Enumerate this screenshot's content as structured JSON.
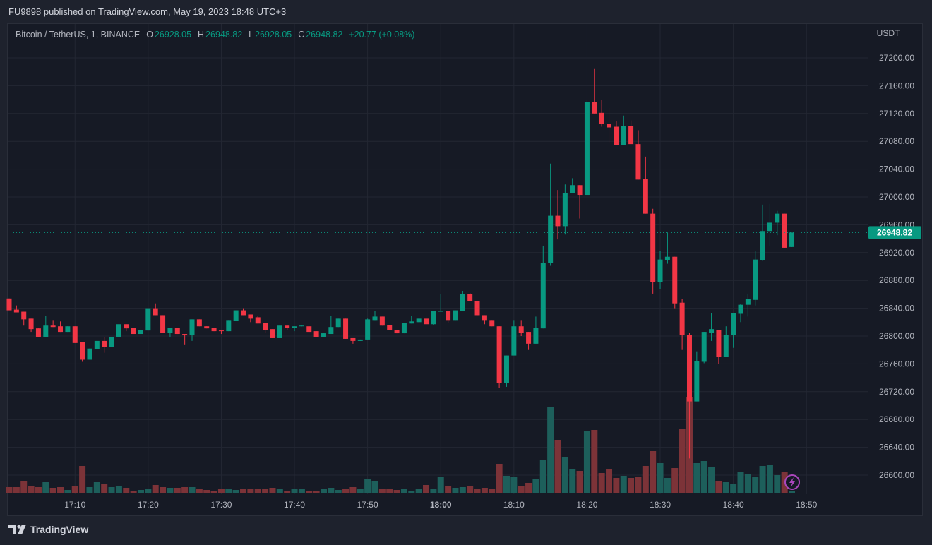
{
  "header": {
    "published": "FU9898 published on TradingView.com, May 19, 2023 18:48 UTC+3"
  },
  "legend": {
    "symbol": "Bitcoin / TetherUS, 1, BINANCE",
    "o_label": "O",
    "o_value": "26928.05",
    "h_label": "H",
    "h_value": "26948.82",
    "l_label": "L",
    "l_value": "26928.05",
    "c_label": "C",
    "c_value": "26948.82",
    "change": "+20.77 (+0.08%)"
  },
  "footer": {
    "logo_text": "TradingView"
  },
  "icons": {
    "alert": "lightning-icon",
    "logo": "tradingview-logo-icon"
  },
  "colors": {
    "up": "#089981",
    "down": "#f23645",
    "up_volume": "#1d5f5b",
    "down_volume": "#7c3338",
    "last_price": "#089981",
    "alert": "#ab47bc"
  },
  "chart_data": {
    "type": "candlestick",
    "title": "Bitcoin / TetherUS, 1, BINANCE",
    "currency": "USDT",
    "interval_minutes": 1,
    "ylim": [
      26580,
      27230
    ],
    "y_ticks": [
      "27200.00",
      "27160.00",
      "27120.00",
      "27080.00",
      "27040.00",
      "27000.00",
      "26960.00",
      "26920.00",
      "26880.00",
      "26840.00",
      "26800.00",
      "26760.00",
      "26720.00",
      "26680.00",
      "26640.00",
      "26600.00"
    ],
    "x_ticks": [
      {
        "label": "17:10",
        "bold": false
      },
      {
        "label": "17:20",
        "bold": false
      },
      {
        "label": "17:30",
        "bold": false
      },
      {
        "label": "17:40",
        "bold": false
      },
      {
        "label": "17:50",
        "bold": false
      },
      {
        "label": "18:00",
        "bold": true
      },
      {
        "label": "18:10",
        "bold": false
      },
      {
        "label": "18:20",
        "bold": false
      },
      {
        "label": "18:30",
        "bold": false
      },
      {
        "label": "18:40",
        "bold": false
      },
      {
        "label": "18:50",
        "bold": false
      }
    ],
    "last_price": "26948.82",
    "ohlc": [
      [
        26854,
        26854,
        26837,
        26837
      ],
      [
        26838,
        26844,
        26834,
        26834
      ],
      [
        26835,
        26835,
        26815,
        26824
      ],
      [
        26825,
        26825,
        26806,
        26810
      ],
      [
        26811,
        26811,
        26799,
        26799
      ],
      [
        26799,
        26829,
        26799,
        26815
      ],
      [
        26815,
        26823,
        26813,
        26813
      ],
      [
        26814,
        26821,
        26806,
        26806
      ],
      [
        26806,
        26814,
        26806,
        26814
      ],
      [
        26814,
        26814,
        26790,
        26790
      ],
      [
        26791,
        26791,
        26763,
        26766
      ],
      [
        26766,
        26782,
        26766,
        26782
      ],
      [
        26781,
        26793,
        26781,
        26793
      ],
      [
        26793,
        26798,
        26776,
        26784
      ],
      [
        26784,
        26799,
        26784,
        26799
      ],
      [
        26799,
        26817,
        26799,
        26817
      ],
      [
        26817,
        26817,
        26807,
        26811
      ],
      [
        26812,
        26812,
        26803,
        26803
      ],
      [
        26803,
        26814,
        26803,
        26809
      ],
      [
        26808,
        26840,
        26808,
        26840
      ],
      [
        26840,
        26847,
        26830,
        26830
      ],
      [
        26830,
        26830,
        26805,
        26805
      ],
      [
        26805,
        26812,
        26799,
        26812
      ],
      [
        26812,
        26812,
        26803,
        26803
      ],
      [
        26803,
        26803,
        26788,
        26801
      ],
      [
        26801,
        26824,
        26793,
        26824
      ],
      [
        26824,
        26824,
        26814,
        26814
      ],
      [
        26814,
        26814,
        26811,
        26811
      ],
      [
        26812,
        26812,
        26807,
        26807
      ],
      [
        26808,
        26808,
        26803,
        26807
      ],
      [
        26807,
        26823,
        26807,
        26823
      ],
      [
        26822,
        26837,
        26822,
        26837
      ],
      [
        26837,
        26840,
        26830,
        26830
      ],
      [
        26831,
        26831,
        26820,
        26825
      ],
      [
        26827,
        26829,
        26818,
        26818
      ],
      [
        26819,
        26819,
        26804,
        26809
      ],
      [
        26810,
        26810,
        26797,
        26797
      ],
      [
        26797,
        26815,
        26797,
        26815
      ],
      [
        26815,
        26815,
        26809,
        26812
      ],
      [
        26812,
        26814,
        26807,
        26814
      ],
      [
        26814,
        26815,
        26814,
        26815
      ],
      [
        26814,
        26814,
        26806,
        26806
      ],
      [
        26807,
        26807,
        26799,
        26799
      ],
      [
        26799,
        26804,
        26799,
        26804
      ],
      [
        26803,
        26829,
        26803,
        26813
      ],
      [
        26813,
        26825,
        26813,
        26825
      ],
      [
        26825,
        26825,
        26796,
        26796
      ],
      [
        26797,
        26797,
        26789,
        26793
      ],
      [
        26793,
        26795,
        26793,
        26795
      ],
      [
        26795,
        26825,
        26795,
        26824
      ],
      [
        26823,
        26836,
        26823,
        26828
      ],
      [
        26828,
        26828,
        26815,
        26815
      ],
      [
        26816,
        26816,
        26809,
        26809
      ],
      [
        26809,
        26809,
        26804,
        26804
      ],
      [
        26804,
        26819,
        26804,
        26819
      ],
      [
        26818,
        26829,
        26818,
        26821
      ],
      [
        26820,
        26825,
        26820,
        26825
      ],
      [
        26825,
        26830,
        26817,
        26817
      ],
      [
        26817,
        26836,
        26816,
        26836
      ],
      [
        26836,
        26860,
        26835,
        26836
      ],
      [
        26836,
        26836,
        26819,
        26823
      ],
      [
        26823,
        26837,
        26823,
        26837
      ],
      [
        26836,
        26865,
        26836,
        26860
      ],
      [
        26860,
        26862,
        26850,
        26850
      ],
      [
        26850,
        26850,
        26830,
        26830
      ],
      [
        26830,
        26830,
        26817,
        26823
      ],
      [
        26823,
        26823,
        26814,
        26814
      ],
      [
        26814,
        26814,
        26725,
        26732
      ],
      [
        26732,
        26772,
        26727,
        26772
      ],
      [
        26772,
        26823,
        26772,
        26814
      ],
      [
        26814,
        26823,
        26800,
        26805
      ],
      [
        26806,
        26806,
        26780,
        26789
      ],
      [
        26789,
        26828,
        26789,
        26812
      ],
      [
        26811,
        26930,
        26811,
        26905
      ],
      [
        26905,
        27048,
        26901,
        26973
      ],
      [
        26973,
        27010,
        26939,
        26958
      ],
      [
        26958,
        27018,
        26946,
        27006
      ],
      [
        27006,
        27027,
        27006,
        27017
      ],
      [
        27017,
        27017,
        26969,
        27003
      ],
      [
        27003,
        27139,
        27003,
        27137
      ],
      [
        27137,
        27184,
        27120,
        27120
      ],
      [
        27121,
        27140,
        27101,
        27105
      ],
      [
        27105,
        27128,
        27077,
        27100
      ],
      [
        27101,
        27109,
        27075,
        27075
      ],
      [
        27075,
        27117,
        27075,
        27102
      ],
      [
        27102,
        27110,
        27076,
        27076
      ],
      [
        27076,
        27096,
        27025,
        27025
      ],
      [
        27026,
        27058,
        26976,
        26976
      ],
      [
        26976,
        26983,
        26861,
        26878
      ],
      [
        26878,
        26922,
        26867,
        26910
      ],
      [
        26909,
        26949,
        26904,
        26914
      ],
      [
        26914,
        26914,
        26840,
        26847
      ],
      [
        26848,
        26853,
        26780,
        26802
      ],
      [
        26802,
        26805,
        26624,
        26706
      ],
      [
        26706,
        26778,
        26706,
        26764
      ],
      [
        26763,
        26806,
        26761,
        26806
      ],
      [
        26805,
        26833,
        26793,
        26810
      ],
      [
        26809,
        26809,
        26760,
        26770
      ],
      [
        26770,
        26814,
        26770,
        26802
      ],
      [
        26802,
        26833,
        26783,
        26833
      ],
      [
        26832,
        26846,
        26820,
        26845
      ],
      [
        26845,
        26861,
        26828,
        26853
      ],
      [
        26852,
        26922,
        26844,
        26910
      ],
      [
        26909,
        26989,
        26908,
        26951
      ],
      [
        26951,
        26990,
        26930,
        26963
      ],
      [
        26963,
        26980,
        26945,
        26976
      ],
      [
        26976,
        26976,
        26927,
        26927
      ],
      [
        26928.05,
        26948.82,
        26928.05,
        26948.82
      ]
    ],
    "volume_relative": [
      8,
      8,
      17,
      10,
      8,
      15,
      7,
      8,
      4,
      9,
      38,
      8,
      15,
      12,
      8,
      9,
      7,
      3,
      4,
      6,
      11,
      8,
      7,
      7,
      8,
      8,
      5,
      4,
      2,
      5,
      6,
      4,
      6,
      6,
      5,
      5,
      7,
      6,
      3,
      5,
      6,
      3,
      3,
      6,
      7,
      4,
      6,
      8,
      6,
      20,
      17,
      5,
      5,
      4,
      5,
      3,
      5,
      11,
      5,
      23,
      10,
      7,
      8,
      9,
      5,
      7,
      6,
      41,
      24,
      22,
      9,
      14,
      19,
      47,
      122,
      75,
      50,
      34,
      31,
      87,
      89,
      28,
      33,
      21,
      24,
      21,
      23,
      38,
      59,
      42,
      21,
      35,
      90,
      135,
      42,
      45,
      36,
      17,
      15,
      13,
      30,
      27,
      22,
      38,
      39,
      25,
      30,
      3
    ]
  }
}
